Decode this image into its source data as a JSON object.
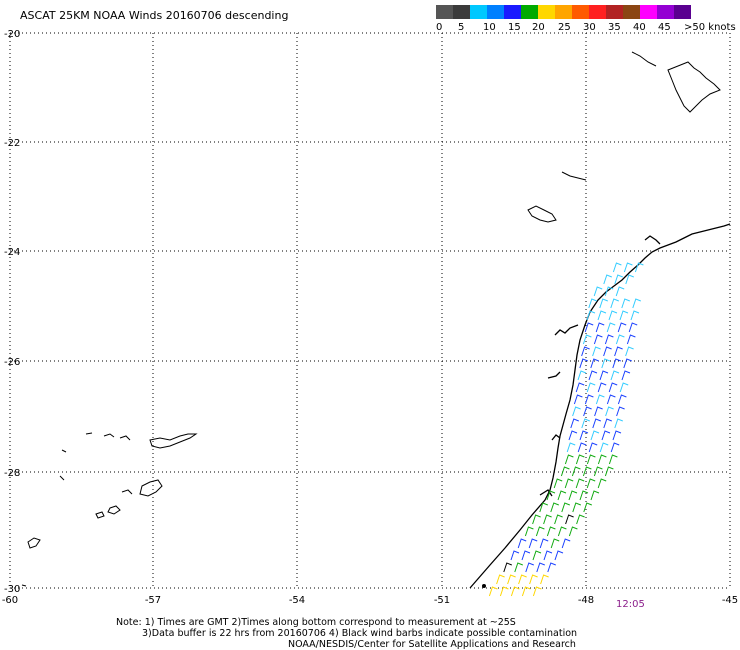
{
  "title": "ASCAT 25KM NOAA Winds 20160706 descending",
  "legend": {
    "colors": [
      "#555555",
      "#3b3b3b",
      "#00c8ff",
      "#0080ff",
      "#1a1aff",
      "#00aa00",
      "#ffd700",
      "#ffa500",
      "#ff5a00",
      "#ff2020",
      "#b22222",
      "#8b4513",
      "#ff00ff",
      "#9400d3",
      "#5a0090"
    ],
    "labels": [
      "0",
      "5",
      "10",
      "15",
      "20",
      "25",
      "30",
      "35",
      "40",
      "45",
      ">50 knots"
    ]
  },
  "axes": {
    "y_labels": [
      "-20",
      "-22",
      "-24",
      "-26",
      "-28",
      "-30"
    ],
    "x_labels": [
      "-60",
      "-57",
      "-54",
      "-51",
      "-48",
      "-45"
    ]
  },
  "time_label": "12:05",
  "notes": [
    "Note: 1) Times are GMT 2)Times along bottom correspond to measurement at ~25S",
    "3)Data buffer is 22 hrs from 20160706 4) Black wind barbs indicate possible contamination",
    "NOAA/NESDIS/Center for Satellite Applications and Research"
  ],
  "colors": {
    "wind_cyan": "#33ccff",
    "wind_blue": "#1a40ff",
    "wind_green": "#11aa11",
    "wind_yellow": "#ffd700",
    "wind_black": "#000000"
  }
}
